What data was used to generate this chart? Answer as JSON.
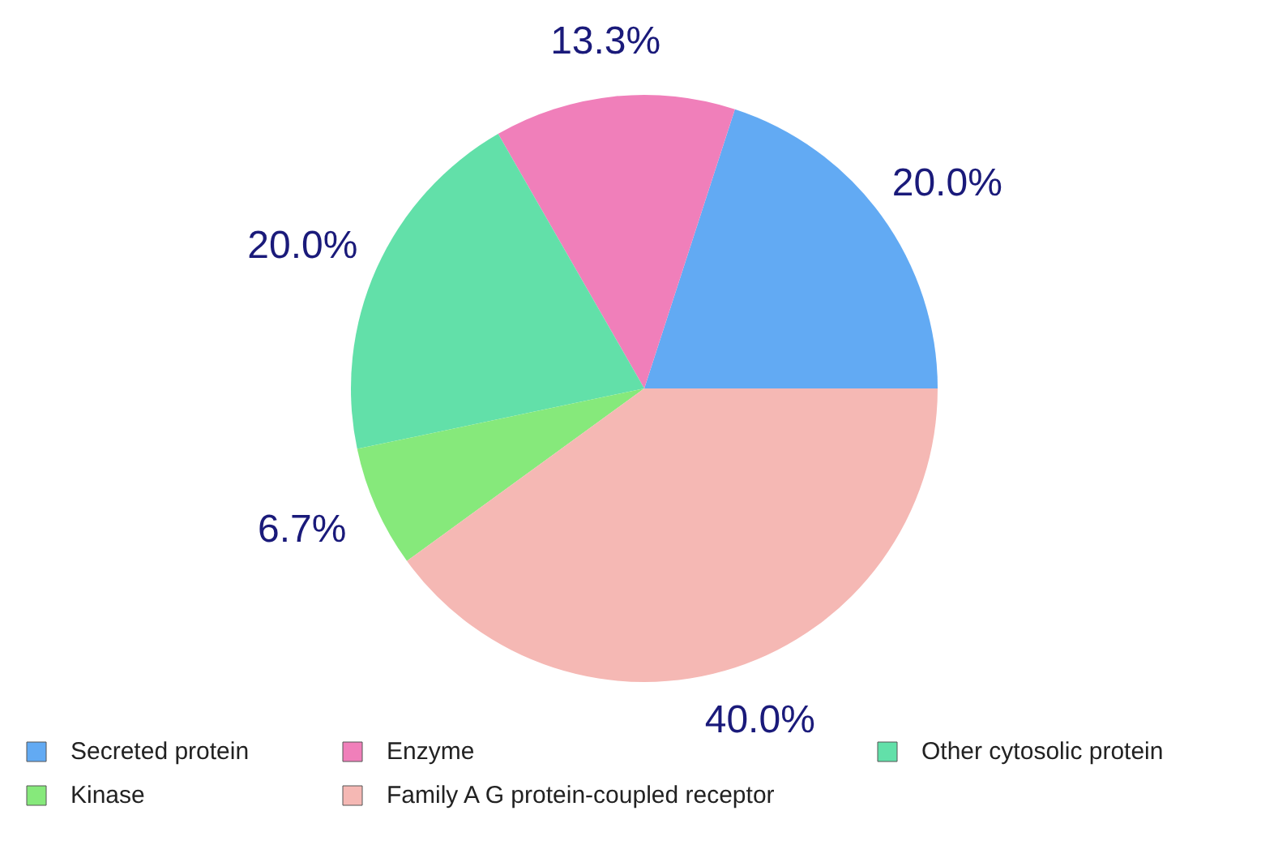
{
  "chart_data": {
    "type": "pie",
    "categories": [
      "Secreted protein",
      "Enzyme",
      "Other cytosolic protein",
      "Kinase",
      "Family A G protein-coupled receptor"
    ],
    "values": [
      20.0,
      13.3,
      20.0,
      6.7,
      40.0
    ],
    "colors": [
      "#62aaf3",
      "#f07fba",
      "#62e0a9",
      "#86e97b",
      "#f5b8b4"
    ],
    "value_labels": [
      "20.0%",
      "13.3%",
      "20.0%",
      "6.7%",
      "40.0%"
    ],
    "legend": "bottom"
  }
}
